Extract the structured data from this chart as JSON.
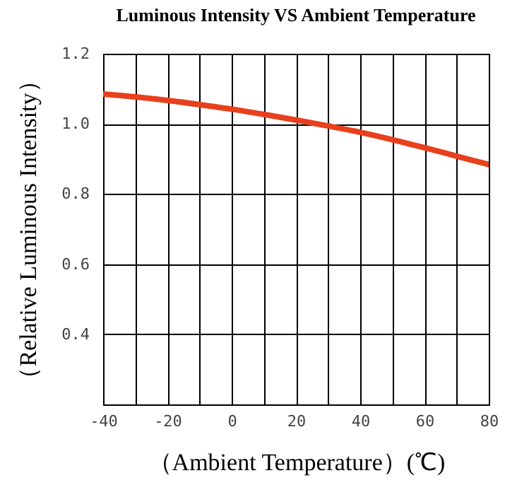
{
  "chart_data": {
    "type": "line",
    "title": "Luminous Intensity VS Ambient Temperature",
    "xlabel": "（Ambient Temperature）(℃)",
    "ylabel": "（Relative Luminous Intensity）",
    "x": [
      -40,
      -30,
      -20,
      -10,
      0,
      10,
      20,
      30,
      40,
      50,
      60,
      70,
      80
    ],
    "series": [
      {
        "color": "#e8401c",
        "values": [
          1.085,
          1.077,
          1.067,
          1.055,
          1.042,
          1.027,
          1.011,
          0.994,
          0.976,
          0.955,
          0.932,
          0.908,
          0.884
        ]
      }
    ],
    "xlim": [
      -40,
      80
    ],
    "ylim": [
      0.2,
      1.2
    ],
    "xticks": [
      -40,
      {
        "value": -30,
        "label": null
      },
      -20,
      {
        "value": -10,
        "label": null
      },
      0,
      {
        "value": 10,
        "label": null
      },
      20,
      {
        "value": 30,
        "label": null
      },
      40,
      {
        "value": 50,
        "label": null
      },
      60,
      {
        "value": 70,
        "label": null
      },
      80
    ],
    "yticks": [
      {
        "value": 0.2,
        "label": null
      },
      0.4,
      0.6,
      0.8,
      {
        "value": 1.0,
        "label": "1.0"
      },
      1.2
    ],
    "grid": true,
    "legend": false,
    "marker": "none",
    "line_style": "solid"
  }
}
